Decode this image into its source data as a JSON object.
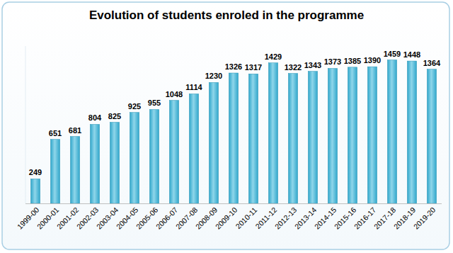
{
  "chart_data": {
    "type": "bar",
    "title": "Evolution of students enroled in the programme",
    "categories": [
      "1999-00",
      "2000-01",
      "2001-02",
      "2002-03",
      "2003-04",
      "2004-05",
      "2005-06",
      "2006-07",
      "2007-08",
      "2008-09",
      "2009-10",
      "2010-11",
      "2011-12",
      "2012-13",
      "2013-14",
      "2014-15",
      "2015-16",
      "2016-17",
      "2017-18",
      "2018-19",
      "2019-20"
    ],
    "values": [
      249,
      651,
      681,
      804,
      825,
      925,
      955,
      1048,
      1114,
      1230,
      1326,
      1317,
      1429,
      1322,
      1343,
      1373,
      1385,
      1390,
      1459,
      1448,
      1364
    ],
    "color": "#31a7cb",
    "ylim": [
      0,
      1600
    ],
    "grid": false,
    "data_labels": true,
    "tick_labels": "x"
  }
}
